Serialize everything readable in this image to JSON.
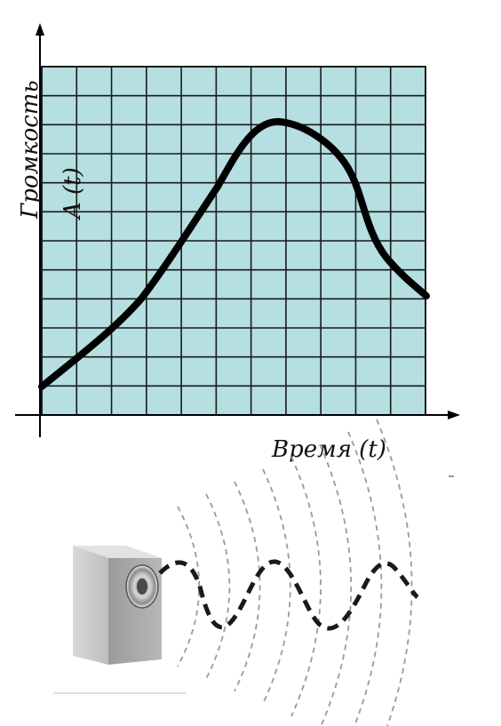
{
  "chart": {
    "ylabel_word": "Громкость",
    "ylabel_func": "A (t)",
    "xlabel": "Время (t)"
  },
  "colors": {
    "grid_fill": "#b5dfe0",
    "grid_line": "#1a1a1a",
    "curve": "#000000",
    "axis": "#000000",
    "speaker_body": "#c4c4c4",
    "speaker_side": "#a9a9a9",
    "wave_dashed": "#1a1a1a",
    "sound_arcs": "#9a9a9a"
  },
  "icons": {
    "speaker": "speaker-icon",
    "sound_wave": "sound-wave-icon"
  }
}
